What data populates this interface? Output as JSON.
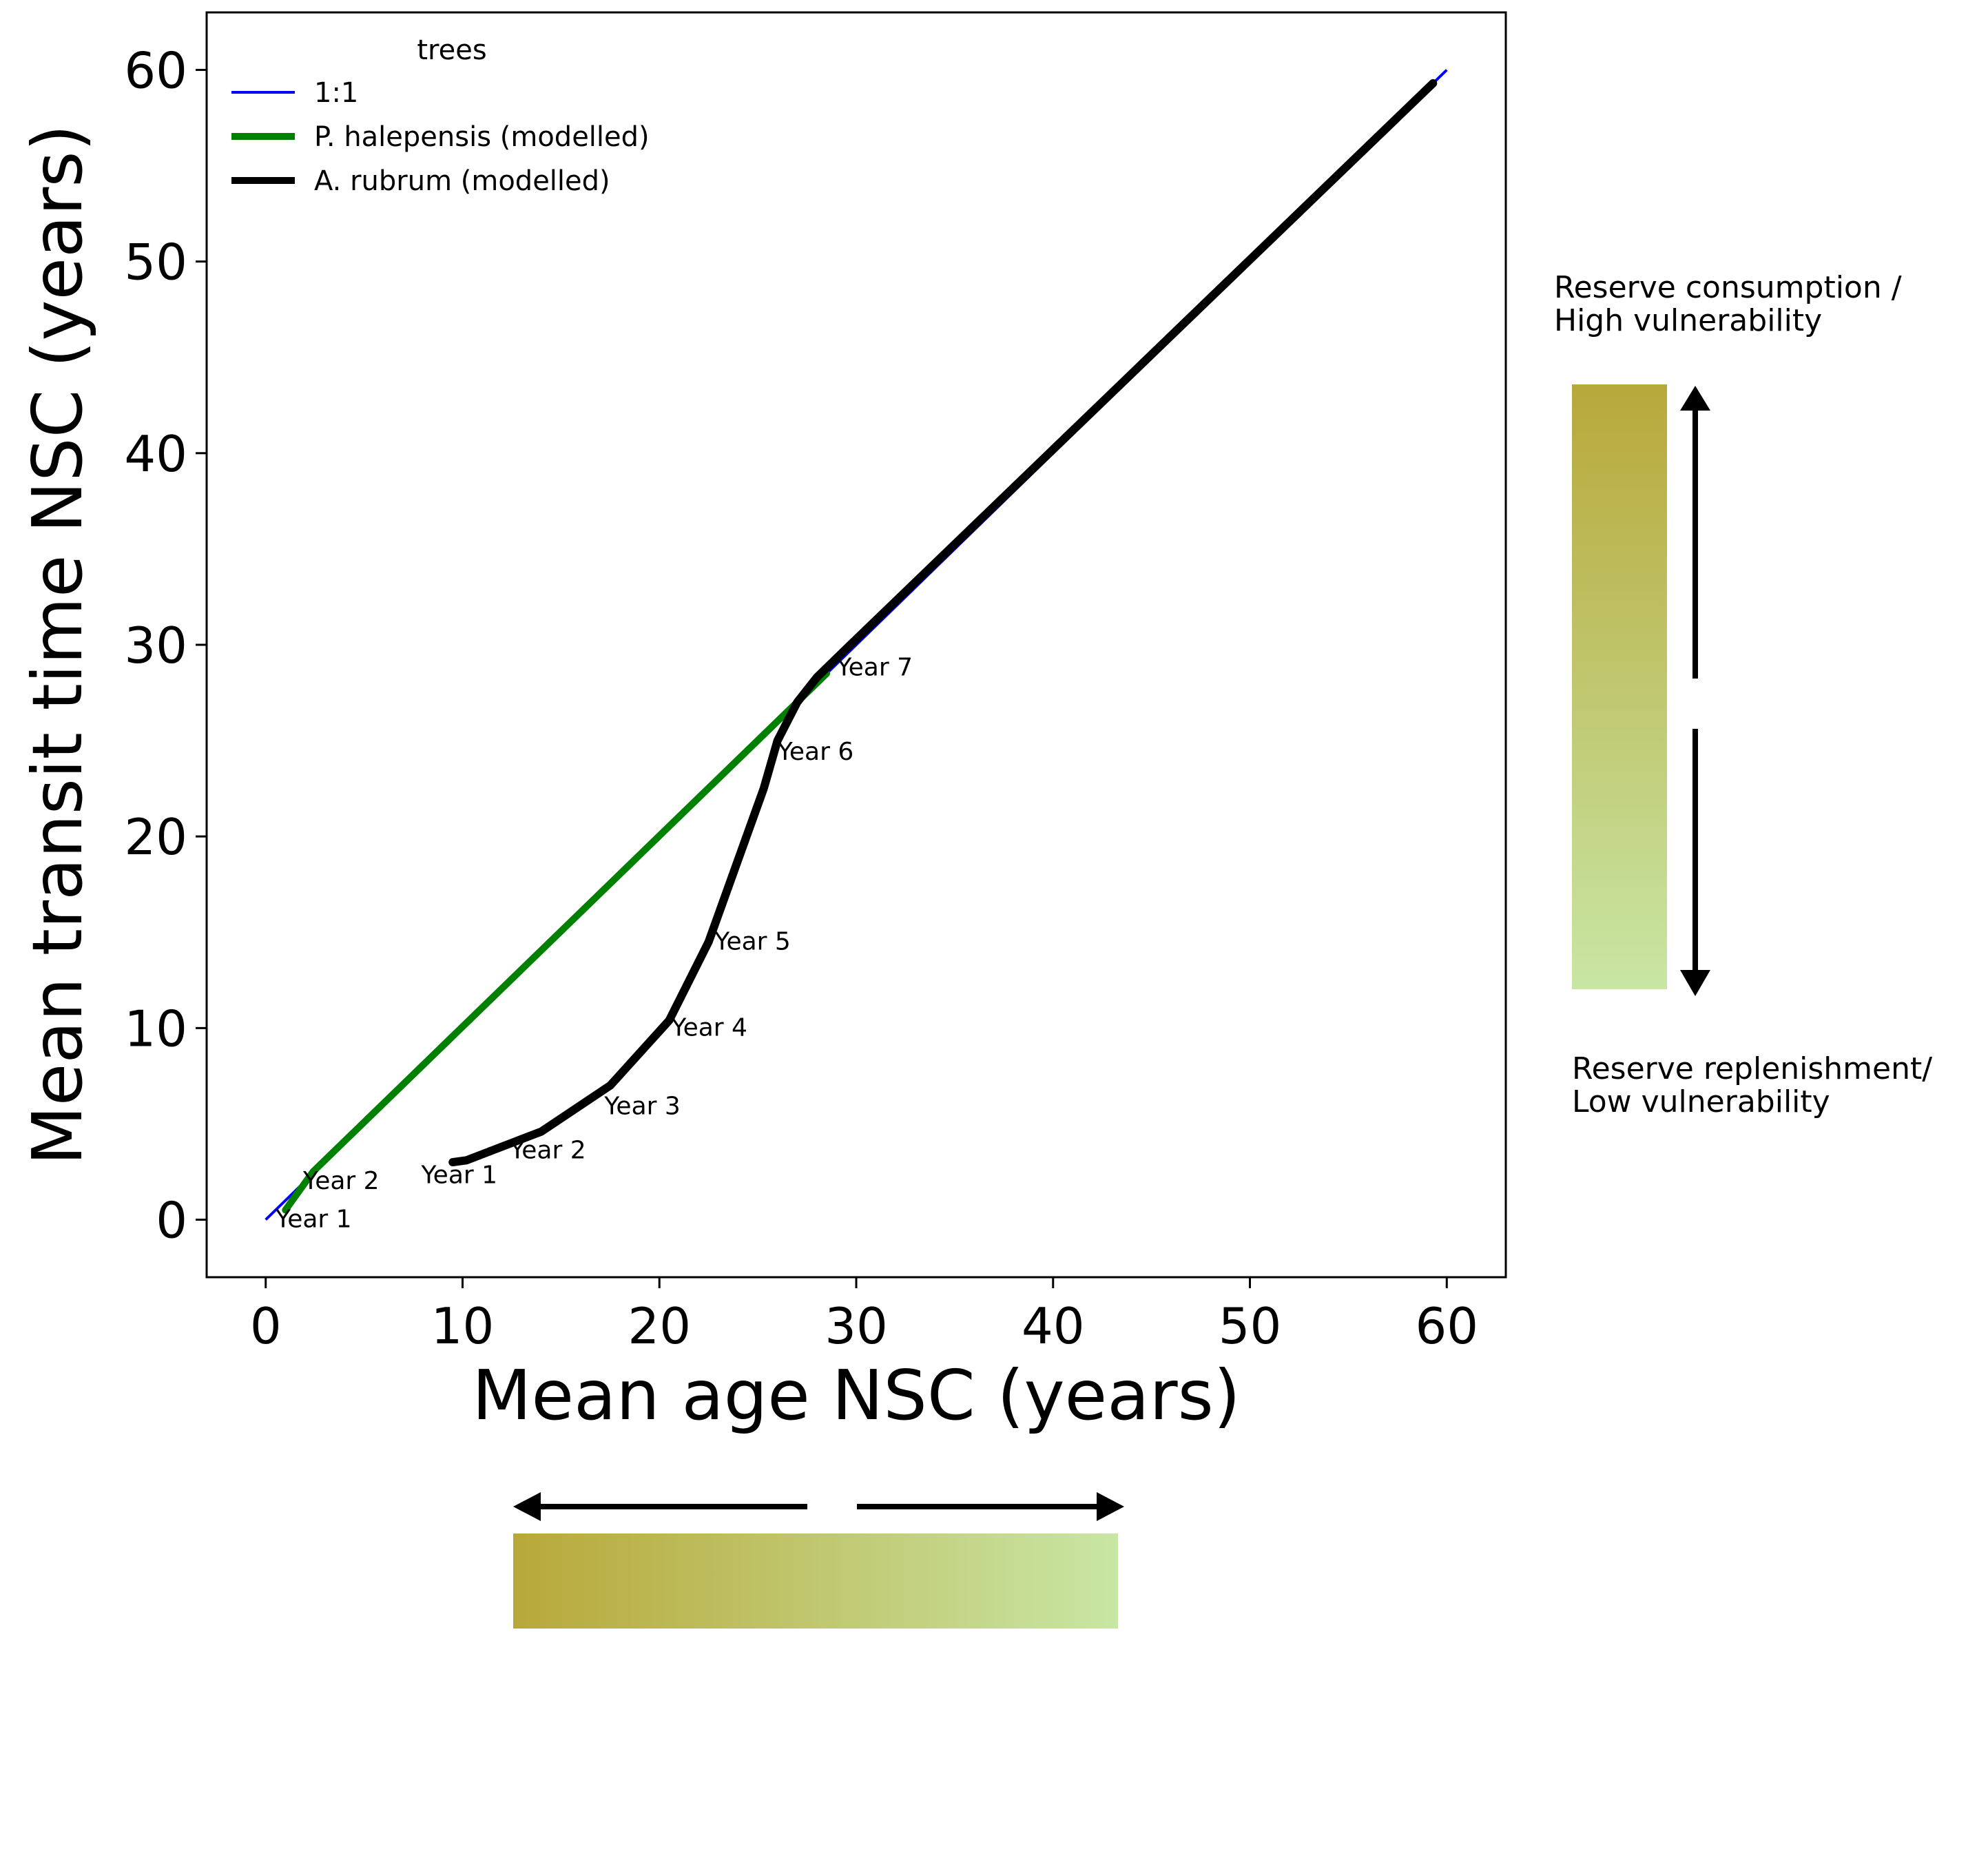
{
  "chart_data": {
    "type": "line",
    "xlabel": "Mean age NSC (years)",
    "ylabel": "Mean transit time NSC (years)",
    "xlim": [
      -3,
      63
    ],
    "ylim": [
      -3,
      63
    ],
    "xticks": [
      0,
      10,
      20,
      30,
      40,
      50,
      60
    ],
    "yticks": [
      0,
      10,
      20,
      30,
      40,
      50,
      60
    ],
    "grid": false,
    "legend": {
      "title": "trees",
      "placement": "top-left",
      "entries": [
        "1:1",
        "P. halepensis (modelled)",
        "A. rubrum (modelled)"
      ]
    },
    "series": [
      {
        "name": "1:1",
        "color": "#0000ff",
        "points": [
          [
            0,
            0
          ],
          [
            60,
            60
          ]
        ]
      },
      {
        "name": "P. halepensis (modelled)",
        "color": "#008000",
        "points": [
          [
            1.0,
            0.5
          ],
          [
            2.4,
            2.5
          ],
          [
            28.5,
            28.5
          ]
        ]
      },
      {
        "name": "A. rubrum (modelled)",
        "color": "#000000",
        "points": [
          [
            9.5,
            3.0
          ],
          [
            10.2,
            3.1
          ],
          [
            14.0,
            4.6
          ],
          [
            17.5,
            7.0
          ],
          [
            20.5,
            10.4
          ],
          [
            22.5,
            14.5
          ],
          [
            25.3,
            22.5
          ],
          [
            26.0,
            25.0
          ],
          [
            27.0,
            27.0
          ],
          [
            28.0,
            28.3
          ],
          [
            29.5,
            29.8
          ],
          [
            59.3,
            59.3
          ]
        ]
      }
    ],
    "annotations": [
      {
        "text": "Year 1",
        "x": 0.5,
        "y": -0.4
      },
      {
        "text": "Year 2",
        "x": 1.9,
        "y": 1.6
      },
      {
        "text": "Year 1",
        "x": 7.9,
        "y": 1.9
      },
      {
        "text": "Year 2",
        "x": 12.4,
        "y": 3.2
      },
      {
        "text": "Year 3",
        "x": 17.2,
        "y": 5.5
      },
      {
        "text": "Year 4",
        "x": 20.6,
        "y": 9.6
      },
      {
        "text": "Year 5",
        "x": 22.8,
        "y": 14.1
      },
      {
        "text": "Year 6",
        "x": 26.0,
        "y": 24.0
      },
      {
        "text": "Year 7",
        "x": 29.0,
        "y": 28.4
      }
    ]
  },
  "side_labels": {
    "top_line1": "Reserve consumption /",
    "top_line2": "High vulnerability",
    "bottom_line1": "Reserve replenishment/",
    "bottom_line2": "Low vulnerability"
  },
  "gradient_colors": {
    "dark": "#b8a83a",
    "light": "#c8e6a4"
  }
}
